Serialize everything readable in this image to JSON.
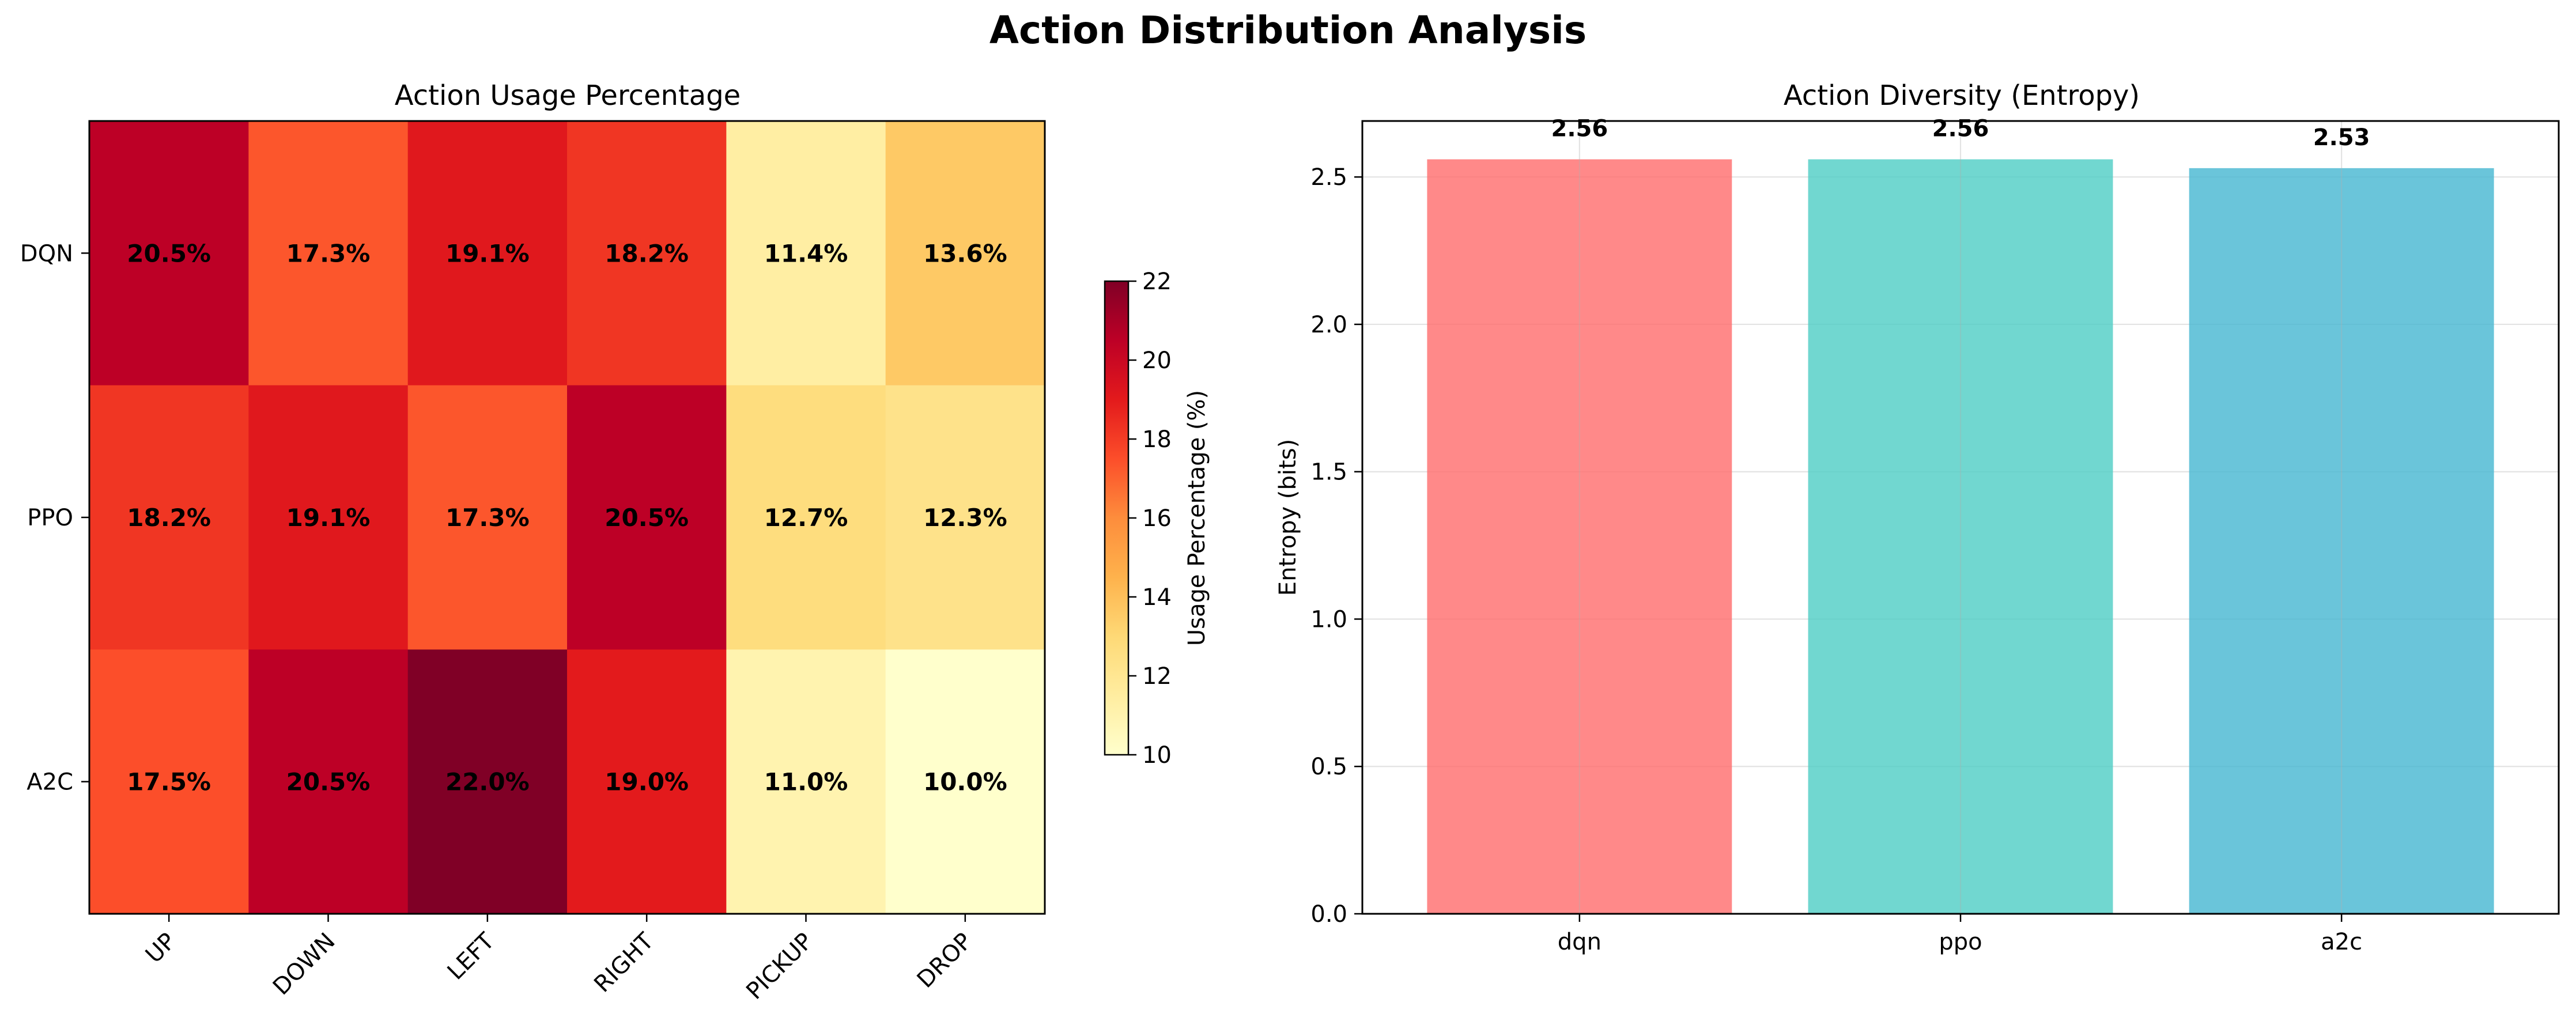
{
  "figure": {
    "title": "Action Distribution Analysis"
  },
  "chart_data": [
    {
      "type": "heatmap",
      "title": "Action Usage Percentage",
      "x_categories": [
        "UP",
        "DOWN",
        "LEFT",
        "RIGHT",
        "PICKUP",
        "DROP"
      ],
      "y_categories": [
        "DQN",
        "PPO",
        "A2C"
      ],
      "values": [
        [
          20.5,
          17.3,
          19.1,
          18.2,
          11.4,
          13.6
        ],
        [
          18.2,
          19.1,
          17.3,
          20.5,
          12.7,
          12.3
        ],
        [
          17.5,
          20.5,
          22.0,
          19.0,
          11.0,
          10.0
        ]
      ],
      "cell_labels": [
        [
          "20.5%",
          "17.3%",
          "19.1%",
          "18.2%",
          "11.4%",
          "13.6%"
        ],
        [
          "18.2%",
          "19.1%",
          "17.3%",
          "20.5%",
          "12.7%",
          "12.3%"
        ],
        [
          "17.5%",
          "20.5%",
          "22.0%",
          "19.0%",
          "11.0%",
          "10.0%"
        ]
      ],
      "colormap": "YlOrRd",
      "colorbar": {
        "label": "Usage Percentage (%)",
        "range": [
          10,
          22
        ],
        "ticks": [
          10,
          12,
          14,
          16,
          18,
          20,
          22
        ]
      }
    },
    {
      "type": "bar",
      "title": "Action Diversity (Entropy)",
      "categories": [
        "dqn",
        "ppo",
        "a2c"
      ],
      "values": [
        2.56,
        2.56,
        2.53
      ],
      "value_labels": [
        "2.56",
        "2.56",
        "2.53"
      ],
      "colors": [
        "#ff6b6b",
        "#4ecdc4",
        "#45b7d1"
      ],
      "xlabel": "",
      "ylabel": "Entropy (bits)",
      "ylim": [
        0,
        2.69
      ],
      "yticks": [
        0.0,
        0.5,
        1.0,
        1.5,
        2.0,
        2.5
      ],
      "ytick_labels": [
        "0.0",
        "0.5",
        "1.0",
        "1.5",
        "2.0",
        "2.5"
      ],
      "grid": true
    }
  ]
}
